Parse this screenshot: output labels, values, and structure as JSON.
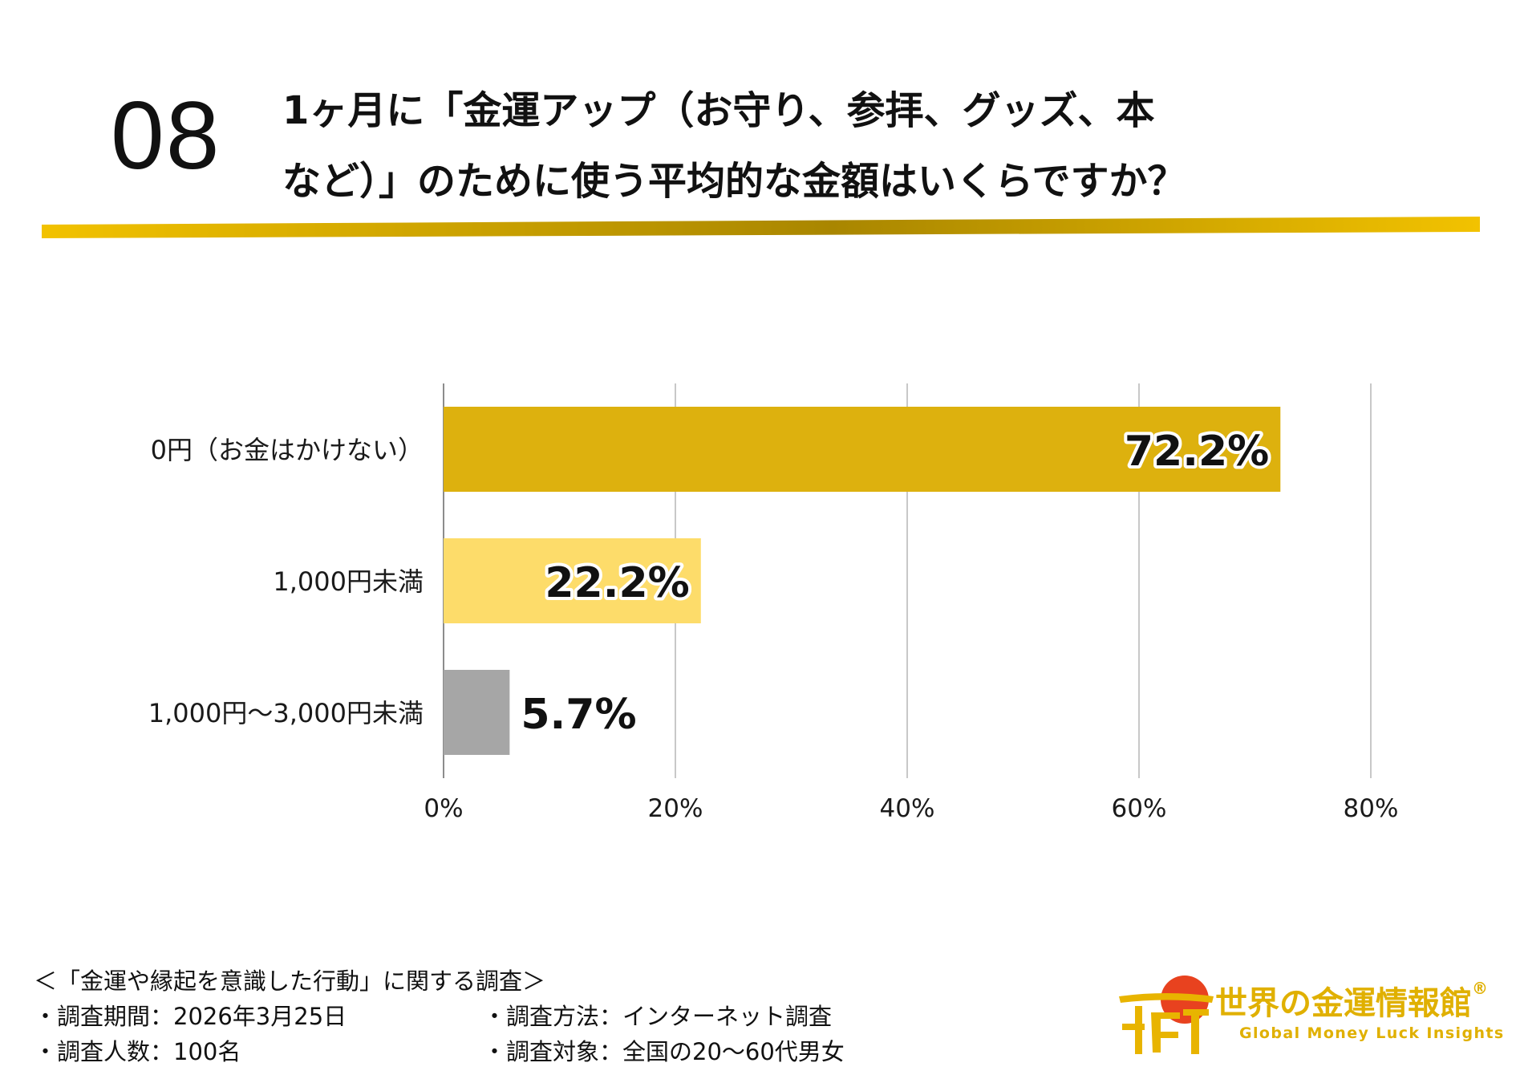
{
  "question": {
    "number": "08",
    "line1": "1ヶ月に「金運アップ（お守り、参拝、グッズ、本",
    "line2": "など）」のために使う平均的な金額はいくらですか？"
  },
  "colors": {
    "accent": "#f2c200",
    "accent_dark": "#b08c00",
    "bar_primary": "#ddb10e",
    "bar_secondary": "#fddc6a",
    "bar_tertiary": "#a6a6a6",
    "grid": "#c8c8c8"
  },
  "chart_data": {
    "type": "bar",
    "orientation": "horizontal",
    "categories": [
      "0円（お金はかけない）",
      "1,000円未満",
      "1,000円〜3,000円未満"
    ],
    "values": [
      72.2,
      22.2,
      5.7
    ],
    "value_labels": [
      "72.2%",
      "22.2%",
      "5.7%"
    ],
    "xlim": [
      0,
      80
    ],
    "xticks": [
      0,
      20,
      40,
      60,
      80
    ],
    "xtick_labels": [
      "0%",
      "20%",
      "40%",
      "60%",
      "80%"
    ],
    "grid": true,
    "title": "1ヶ月に「金運アップ（お守り、参拝、グッズ、本など）」のために使う平均的な金額はいくらですか？"
  },
  "footer": {
    "survey_title": "＜「金運や縁起を意識した行動」に関する調査＞",
    "period": "・調査期間：2026年3月25日",
    "respondents": "・調査人数：100名",
    "method": "・調査方法：インターネット調査",
    "target": "・調査対象：全国の20〜60代男女"
  },
  "brand": {
    "name": "世界の金運情報館",
    "registered": "®",
    "tagline": "Global Money Luck Insights",
    "logo_icon": "torii-kanji-logo-icon"
  }
}
